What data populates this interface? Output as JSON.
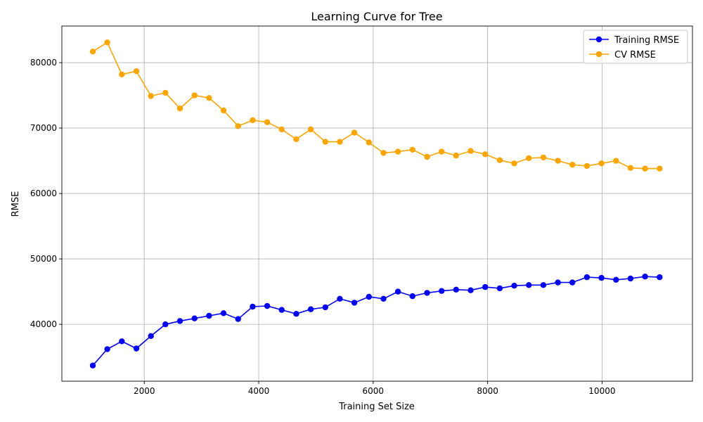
{
  "chart_data": {
    "type": "line",
    "title": "Learning Curve for Tree",
    "xlabel": "Training Set Size",
    "ylabel": "RMSE",
    "xlim": [
      560,
      11580
    ],
    "ylim": [
      31300,
      85600
    ],
    "xticks": [
      2000,
      4000,
      6000,
      8000,
      10000
    ],
    "yticks": [
      40000,
      50000,
      60000,
      70000,
      80000
    ],
    "grid": true,
    "legend_position": "top-right",
    "x": [
      1100,
      1354,
      1608,
      1862,
      2116,
      2370,
      2624,
      2878,
      3132,
      3386,
      3640,
      3894,
      4148,
      4402,
      4656,
      4910,
      5164,
      5418,
      5672,
      5926,
      6180,
      6434,
      6688,
      6942,
      7196,
      7450,
      7704,
      7958,
      8212,
      8466,
      8720,
      8974,
      9228,
      9482,
      9736,
      9990,
      10244,
      10498,
      10752,
      11006
    ],
    "series": [
      {
        "name": "Training RMSE",
        "color": "#0000ff",
        "values": [
          33700,
          36200,
          37400,
          36300,
          38200,
          40000,
          40500,
          40900,
          41300,
          41700,
          40800,
          42700,
          42800,
          42200,
          41600,
          42300,
          42600,
          43900,
          43300,
          44200,
          43900,
          45000,
          44300,
          44800,
          45100,
          45300,
          45200,
          45700,
          45500,
          45900,
          46000,
          46000,
          46400,
          46400,
          47200,
          47100,
          46800,
          47000,
          47300,
          47200
        ]
      },
      {
        "name": "CV RMSE",
        "color": "#ffa500",
        "values": [
          81700,
          83100,
          78200,
          78700,
          74900,
          75400,
          73000,
          75000,
          74600,
          72700,
          70300,
          71200,
          70900,
          69800,
          68300,
          69800,
          67900,
          67900,
          69300,
          67800,
          66200,
          66400,
          66700,
          65600,
          66400,
          65800,
          66500,
          66000,
          65100,
          64600,
          65400,
          65500,
          65000,
          64400,
          64200,
          64600,
          65000,
          63900,
          63800,
          63800
        ]
      }
    ]
  }
}
